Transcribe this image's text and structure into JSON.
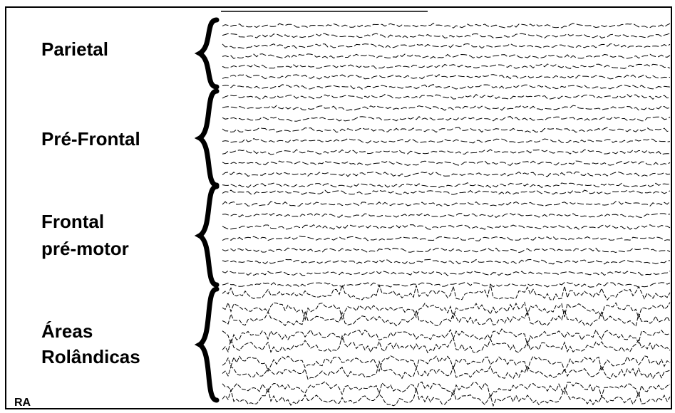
{
  "regions": [
    {
      "lines": [
        "Parietal"
      ]
    },
    {
      "lines": [
        "Pré-Frontal"
      ]
    },
    {
      "lines": [
        "Frontal",
        "pré-motor"
      ]
    },
    {
      "lines": [
        "Áreas",
        "Rolândicas"
      ]
    }
  ],
  "corner_label": "RA"
}
